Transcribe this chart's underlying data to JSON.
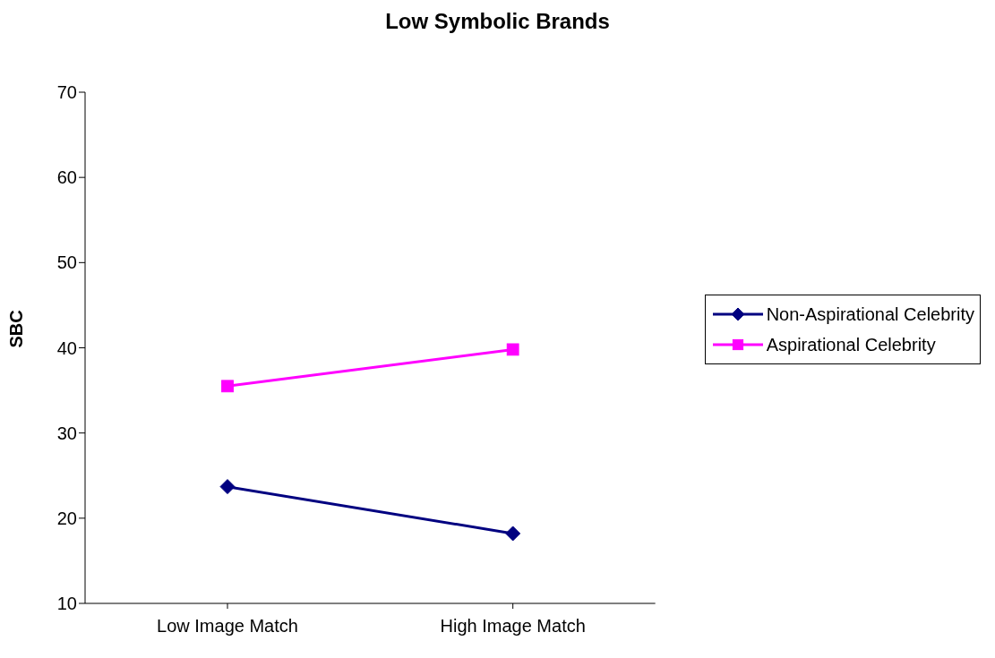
{
  "chart_data": {
    "type": "line",
    "title": "Low Symbolic Brands",
    "ylabel": "SBC",
    "categories": [
      "Low Image Match",
      "High Image Match"
    ],
    "series": [
      {
        "name": "Non-Aspirational Celebrity",
        "color": "#000080",
        "values": [
          23.7,
          18.2
        ],
        "marker": "diamond"
      },
      {
        "name": "Aspirational Celebrity",
        "color": "#ff00ff",
        "values": [
          35.5,
          39.8
        ],
        "marker": "square"
      }
    ],
    "ylim": [
      10,
      70
    ],
    "yticks": [
      10,
      20,
      30,
      40,
      50,
      60,
      70
    ],
    "grid": false,
    "legend": "right",
    "line_style": "solid"
  }
}
